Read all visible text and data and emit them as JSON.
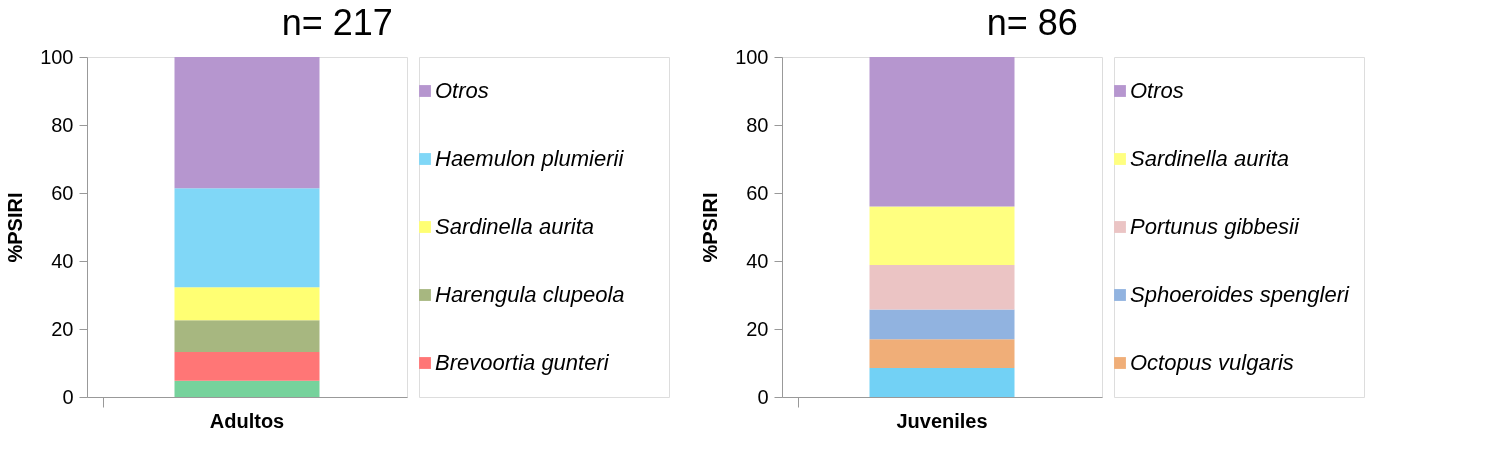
{
  "chart_data": [
    {
      "type": "bar",
      "title": "n= 217",
      "ylabel": "%PSIRI",
      "categories": [
        "Adultos"
      ],
      "stacked": true,
      "ylim": [
        0,
        100
      ],
      "yticks": [
        0,
        20,
        40,
        60,
        80,
        100
      ],
      "legend": "right",
      "series": [
        {
          "color": "#76d29c",
          "values": [
            4.8
          ]
        },
        {
          "name": "Brevoortia gunteri",
          "color": "#ff7676",
          "values": [
            8.4
          ]
        },
        {
          "name": "Harengula clupeola",
          "color": "#a7b780",
          "values": [
            9.4
          ]
        },
        {
          "name": "Sardinella aurita",
          "color": "#ffff73",
          "values": [
            9.7
          ]
        },
        {
          "name": "Haemulon plumierii",
          "color": "#80d7f7",
          "values": [
            29.1
          ]
        },
        {
          "name": "Otros",
          "color": "#b696cf",
          "values": [
            38.6
          ]
        }
      ]
    },
    {
      "type": "bar",
      "title": "n= 86",
      "ylabel": "%PSIRI",
      "categories": [
        "Juveniles"
      ],
      "stacked": true,
      "ylim": [
        0,
        100
      ],
      "yticks": [
        0,
        20,
        40,
        60,
        80,
        100
      ],
      "legend": "right",
      "series": [
        {
          "color": "#72d1f5",
          "values": [
            8.5
          ]
        },
        {
          "name": "Octopus vulgaris",
          "color": "#f0ae78",
          "values": [
            8.5
          ]
        },
        {
          "name": "Sphoeroides spengleri",
          "color": "#91b3e0",
          "values": [
            8.7
          ]
        },
        {
          "name": "Portunus gibbesii",
          "color": "#ebc4c4",
          "values": [
            13.1
          ]
        },
        {
          "name": "Sardinella aurita",
          "color": "#ffff80",
          "values": [
            17.2
          ]
        },
        {
          "name": "Otros",
          "color": "#b696cf",
          "values": [
            44.0
          ]
        }
      ]
    }
  ]
}
